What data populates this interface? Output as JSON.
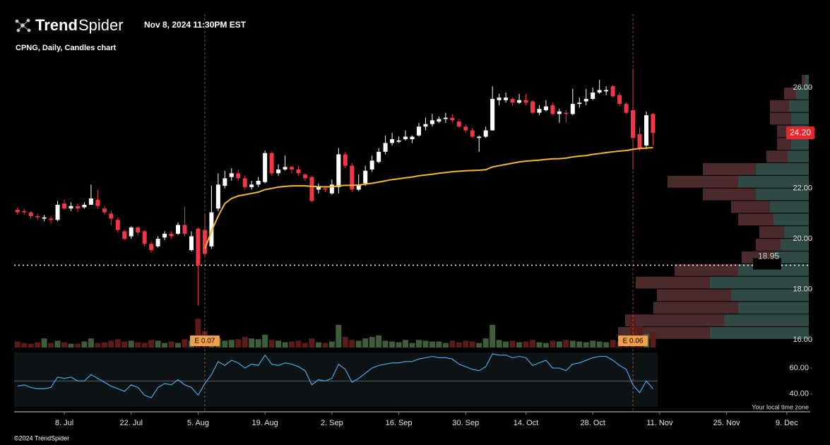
{
  "header": {
    "brand_bold": "Trend",
    "brand_light": "Spider",
    "timestamp": "Nov 8, 2024 11:30PM EST",
    "subtitle": "CPNG, Daily, Candles chart"
  },
  "footer": {
    "copyright": "©2024 TrendSpider",
    "timezone_note": "Your local time zone"
  },
  "chart_data": [
    {
      "type": "candlestick",
      "up_color": "#ffffff",
      "down_color": "#f23645",
      "x": [
        0,
        1,
        2,
        3,
        4,
        5,
        6,
        7,
        8,
        9,
        10,
        11,
        12,
        13,
        14,
        15,
        16,
        17,
        18,
        19,
        20,
        21,
        22,
        23,
        24,
        25,
        26,
        27,
        28,
        29,
        30,
        31,
        32,
        33,
        34,
        35,
        36,
        37,
        38,
        39,
        40,
        41,
        42,
        43,
        44,
        45,
        46,
        47,
        48,
        49,
        50,
        51,
        52,
        53,
        54,
        55,
        56,
        57,
        58,
        59,
        60,
        61,
        62,
        63,
        64,
        65,
        66,
        67,
        68,
        69,
        70,
        71,
        72,
        73,
        74,
        75,
        76,
        77,
        78,
        79,
        80,
        81,
        82,
        83,
        84,
        85,
        86,
        87,
        88,
        89,
        90,
        91,
        92,
        93,
        94,
        95
      ],
      "candles": [
        [
          21.15,
          21.25,
          20.95,
          21.05
        ],
        [
          21.1,
          21.2,
          20.95,
          21.05
        ],
        [
          21.05,
          21.1,
          20.8,
          20.9
        ],
        [
          20.9,
          21.0,
          20.75,
          20.85
        ],
        [
          20.8,
          20.95,
          20.7,
          20.85
        ],
        [
          20.8,
          20.9,
          20.6,
          20.75
        ],
        [
          20.75,
          21.5,
          20.7,
          21.35
        ],
        [
          21.4,
          21.55,
          21.15,
          21.2
        ],
        [
          21.2,
          21.45,
          21.1,
          21.3
        ],
        [
          21.3,
          21.4,
          21.05,
          21.2
        ],
        [
          21.25,
          21.45,
          21.2,
          21.35
        ],
        [
          21.35,
          22.15,
          21.35,
          21.6
        ],
        [
          21.55,
          21.95,
          21.2,
          21.3
        ],
        [
          21.2,
          21.3,
          20.95,
          21.05
        ],
        [
          21.0,
          21.1,
          20.55,
          20.8
        ],
        [
          20.75,
          20.85,
          20.25,
          20.35
        ],
        [
          20.3,
          20.35,
          19.95,
          20.0
        ],
        [
          20.1,
          20.5,
          20.0,
          20.45
        ],
        [
          20.45,
          20.5,
          20.15,
          20.25
        ],
        [
          20.3,
          20.35,
          19.7,
          19.8
        ],
        [
          19.8,
          19.9,
          19.45,
          19.55
        ],
        [
          19.7,
          20.1,
          19.65,
          20.0
        ],
        [
          20.05,
          20.3,
          19.95,
          20.2
        ],
        [
          20.2,
          20.3,
          20.0,
          20.1
        ],
        [
          20.2,
          20.65,
          20.15,
          20.55
        ],
        [
          20.55,
          21.25,
          20.1,
          20.2
        ],
        [
          19.55,
          20.3,
          19.5,
          20.1
        ],
        [
          20.4,
          20.45,
          17.35,
          18.95
        ],
        [
          20.35,
          21.0,
          19.3,
          19.4
        ],
        [
          19.7,
          22.1,
          19.6,
          21.05
        ],
        [
          21.2,
          22.6,
          21.1,
          22.15
        ],
        [
          22.1,
          22.7,
          22.0,
          22.4
        ],
        [
          22.45,
          22.8,
          22.3,
          22.6
        ],
        [
          22.6,
          22.75,
          22.3,
          22.4
        ],
        [
          22.4,
          22.5,
          21.95,
          22.05
        ],
        [
          22.05,
          22.3,
          21.95,
          22.15
        ],
        [
          22.15,
          22.45,
          22.05,
          22.3
        ],
        [
          22.25,
          23.5,
          22.2,
          23.4
        ],
        [
          23.4,
          23.45,
          22.5,
          22.6
        ],
        [
          22.6,
          22.95,
          22.5,
          22.75
        ],
        [
          22.75,
          23.3,
          22.7,
          22.85
        ],
        [
          22.85,
          22.9,
          22.6,
          22.75
        ],
        [
          22.75,
          22.9,
          22.5,
          22.6
        ],
        [
          22.55,
          22.6,
          22.3,
          22.4
        ],
        [
          22.45,
          22.5,
          21.45,
          21.5
        ],
        [
          21.95,
          22.2,
          21.8,
          22.05
        ],
        [
          22.0,
          22.1,
          21.85,
          21.95
        ],
        [
          21.8,
          22.35,
          21.75,
          22.15
        ],
        [
          22.05,
          23.6,
          21.8,
          23.35
        ],
        [
          23.35,
          23.45,
          22.8,
          22.9
        ],
        [
          22.9,
          23.0,
          21.85,
          21.95
        ],
        [
          21.95,
          22.55,
          21.9,
          22.15
        ],
        [
          22.2,
          22.9,
          22.1,
          22.7
        ],
        [
          22.75,
          23.3,
          22.65,
          23.1
        ],
        [
          23.05,
          23.6,
          23.0,
          23.45
        ],
        [
          23.45,
          24.1,
          23.35,
          23.8
        ],
        [
          23.8,
          24.2,
          23.7,
          23.95
        ],
        [
          23.85,
          24.05,
          23.8,
          23.9
        ],
        [
          23.95,
          24.3,
          23.9,
          24.05
        ],
        [
          23.95,
          24.1,
          23.8,
          24.05
        ],
        [
          24.1,
          24.6,
          24.05,
          24.45
        ],
        [
          24.45,
          24.8,
          24.3,
          24.55
        ],
        [
          24.55,
          24.95,
          24.45,
          24.7
        ],
        [
          24.65,
          24.85,
          24.6,
          24.75
        ],
        [
          24.75,
          25.0,
          24.6,
          24.8
        ],
        [
          24.8,
          24.95,
          24.6,
          24.7
        ],
        [
          24.65,
          24.75,
          24.4,
          24.45
        ],
        [
          24.45,
          24.55,
          24.2,
          24.3
        ],
        [
          24.3,
          24.4,
          24.0,
          24.05
        ],
        [
          24.0,
          24.1,
          23.45,
          24.05
        ],
        [
          24.05,
          24.45,
          24.0,
          24.3
        ],
        [
          24.3,
          26.05,
          24.3,
          25.55
        ],
        [
          25.5,
          25.75,
          25.3,
          25.6
        ],
        [
          25.5,
          25.8,
          25.4,
          25.6
        ],
        [
          25.55,
          25.6,
          25.3,
          25.4
        ],
        [
          25.4,
          25.75,
          25.35,
          25.5
        ],
        [
          25.5,
          25.75,
          25.3,
          25.4
        ],
        [
          25.45,
          25.5,
          24.95,
          25.0
        ],
        [
          25.0,
          25.3,
          24.9,
          25.15
        ],
        [
          25.1,
          25.5,
          25.05,
          25.25
        ],
        [
          25.3,
          25.4,
          24.9,
          24.95
        ],
        [
          24.95,
          25.15,
          24.6,
          25.05
        ],
        [
          25.0,
          25.1,
          24.6,
          24.95
        ],
        [
          24.95,
          25.95,
          24.9,
          25.35
        ],
        [
          25.35,
          25.6,
          25.2,
          25.4
        ],
        [
          25.45,
          25.95,
          25.3,
          25.55
        ],
        [
          25.55,
          26.0,
          25.5,
          25.8
        ],
        [
          25.8,
          26.3,
          25.75,
          25.9
        ],
        [
          25.85,
          26.05,
          25.7,
          25.9
        ],
        [
          26.05,
          26.1,
          25.6,
          25.65
        ],
        [
          25.7,
          25.8,
          25.25,
          25.35
        ],
        [
          25.35,
          25.4,
          24.95,
          25.0
        ],
        [
          25.1,
          26.75,
          22.75,
          24.0
        ],
        [
          24.15,
          24.4,
          23.5,
          23.6
        ],
        [
          23.7,
          25.05,
          23.55,
          24.9
        ],
        [
          24.95,
          25.0,
          23.7,
          24.2
        ]
      ],
      "moving_average": {
        "color": "#f5b82e",
        "values": [
          null,
          null,
          null,
          null,
          null,
          null,
          null,
          null,
          null,
          null,
          null,
          null,
          null,
          null,
          null,
          null,
          null,
          null,
          null,
          null,
          null,
          null,
          null,
          null,
          null,
          null,
          null,
          null,
          19.6,
          20.3,
          20.9,
          21.4,
          21.6,
          21.7,
          21.75,
          21.8,
          21.85,
          21.95,
          22.0,
          22.05,
          22.08,
          22.1,
          22.1,
          22.1,
          22.08,
          22.07,
          22.06,
          22.06,
          22.1,
          22.12,
          22.12,
          22.13,
          22.17,
          22.2,
          22.25,
          22.3,
          22.35,
          22.38,
          22.42,
          22.45,
          22.5,
          22.53,
          22.56,
          22.6,
          22.63,
          22.66,
          22.68,
          22.7,
          22.71,
          22.72,
          22.74,
          22.85,
          22.9,
          22.95,
          23.0,
          23.05,
          23.08,
          23.1,
          23.12,
          23.15,
          23.17,
          23.18,
          23.2,
          23.25,
          23.28,
          23.3,
          23.35,
          23.38,
          23.42,
          23.45,
          23.48,
          23.5,
          23.55,
          23.58,
          23.6,
          23.62
        ]
      },
      "volume": {
        "up_color": "#3d5e36",
        "down_color": "#5c1b1b",
        "values": [
          8,
          6,
          5,
          7,
          12,
          6,
          9,
          7,
          5,
          5,
          8,
          12,
          6,
          7,
          9,
          11,
          8,
          9,
          7,
          6,
          10,
          9,
          6,
          8,
          6,
          11,
          9,
          38,
          22,
          14,
          12,
          9,
          10,
          11,
          14,
          12,
          11,
          17,
          10,
          9,
          7,
          8,
          9,
          6,
          12,
          7,
          6,
          8,
          30,
          14,
          10,
          9,
          12,
          14,
          16,
          9,
          8,
          7,
          10,
          6,
          10,
          9,
          8,
          8,
          6,
          9,
          7,
          9,
          8,
          6,
          12,
          30,
          10,
          8,
          9,
          7,
          8,
          10,
          7,
          6,
          9,
          8,
          10,
          9,
          8,
          7,
          9,
          8,
          7,
          10,
          8,
          7,
          42,
          28,
          18,
          20
        ]
      },
      "volume_profile": {
        "up_color": "#2f4a45",
        "down_color": "#4a2a2c",
        "bins": [
          16,
          16.5,
          17,
          17.5,
          18,
          18.5,
          19,
          19.5,
          20,
          20.5,
          21,
          21.5,
          22,
          22.5,
          23,
          23.5,
          24,
          24.5,
          25,
          25.5,
          26,
          26.5
        ],
        "up": [
          140,
          120,
          100,
          110,
          140,
          100,
          50,
          40,
          35,
          50,
          55,
          75,
          100,
          75,
          30,
          25,
          25,
          25,
          28,
          18,
          5
        ],
        "down": [
          130,
          140,
          120,
          105,
          105,
          90,
          45,
          35,
          35,
          50,
          55,
          75,
          100,
          75,
          30,
          20,
          20,
          30,
          27,
          17,
          5
        ]
      },
      "hline": 18.95,
      "last_price": {
        "value": 24.2,
        "label": "24.20"
      },
      "events": [
        {
          "x": 28,
          "label": "E 0.07"
        },
        {
          "x": 92,
          "label": "E 0.06"
        }
      ],
      "xlim": [
        -0.5,
        118.5
      ],
      "xticks": [
        {
          "value": 7,
          "label": "8. Jul"
        },
        {
          "value": 17,
          "label": "22. Jul"
        },
        {
          "value": 27,
          "label": "5. Aug"
        },
        {
          "value": 37,
          "label": "19. Aug"
        },
        {
          "value": 47,
          "label": "2. Sep"
        },
        {
          "value": 57,
          "label": "16. Sep"
        },
        {
          "value": 67,
          "label": "30. Sep"
        },
        {
          "value": 76,
          "label": "14. Oct"
        },
        {
          "value": 86,
          "label": "28. Oct"
        },
        {
          "value": 96,
          "label": "11. Nov"
        },
        {
          "value": 106,
          "label": "25. Nov"
        },
        {
          "value": 115,
          "label": "9. Dec"
        }
      ],
      "ylim": [
        15.66,
        27.09
      ],
      "yticks": [
        {
          "value": 16,
          "label": "16.00"
        },
        {
          "value": 18,
          "label": "18.00"
        },
        {
          "value": 20,
          "label": "20.00"
        },
        {
          "value": 22,
          "label": "22.00"
        },
        {
          "value": 26,
          "label": "26.00"
        }
      ]
    },
    {
      "type": "line",
      "color": "#4aa8e0",
      "midline": 50,
      "values": [
        46,
        47,
        45,
        44,
        44,
        45,
        53,
        52,
        53,
        50,
        50,
        55,
        52,
        49,
        46,
        44,
        42,
        47,
        45,
        39,
        37,
        45,
        48,
        47,
        51,
        47,
        45,
        39,
        48,
        55,
        65,
        62,
        66,
        64,
        60,
        63,
        62,
        70,
        63,
        62,
        64,
        63,
        61,
        58,
        47,
        51,
        50,
        52,
        63,
        59,
        49,
        52,
        56,
        60,
        62,
        63,
        64,
        64,
        65,
        65,
        67,
        68,
        69,
        68,
        68,
        67,
        63,
        61,
        59,
        58,
        61,
        71,
        70,
        70,
        68,
        69,
        68,
        62,
        64,
        66,
        60,
        60,
        58,
        63,
        64,
        66,
        68,
        69,
        69,
        66,
        62,
        59,
        47,
        41,
        50,
        44
      ],
      "ylim": [
        30,
        71.5
      ],
      "yticks": [
        {
          "value": 60,
          "label": "60.00"
        },
        {
          "value": 40,
          "label": "40.00"
        }
      ]
    }
  ]
}
